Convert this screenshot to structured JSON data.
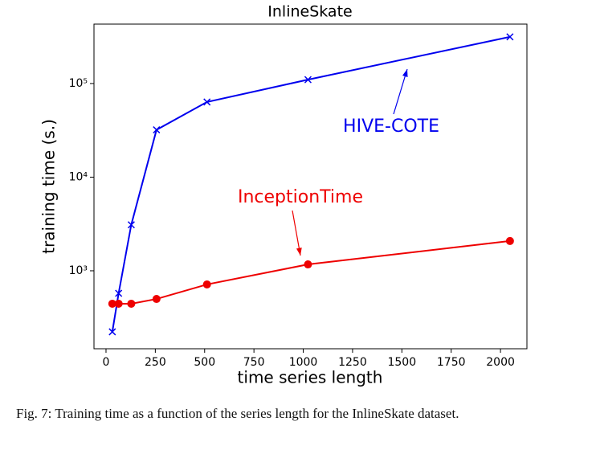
{
  "chart_data": {
    "type": "line",
    "title": "InlineSkate",
    "x_label": "time series length",
    "y_label": "training time (s.)",
    "x": [
      32,
      64,
      128,
      256,
      512,
      1024,
      2048
    ],
    "series": [
      {
        "name": "HIVE-COTE",
        "color": "#0000ee",
        "marker": "x",
        "values": [
          223,
          575,
          3100,
          32000,
          63500,
          110000,
          315000
        ]
      },
      {
        "name": "InceptionTime",
        "color": "#ee0000",
        "marker": "o",
        "values": [
          445,
          445,
          445,
          500,
          715,
          1170,
          2080
        ]
      }
    ],
    "xlim": [
      -61,
      2134
    ],
    "xticks": [
      0,
      250,
      500,
      750,
      1000,
      1250,
      1500,
      1750,
      2000
    ],
    "ylim": [
      147,
      431000
    ],
    "log_y": true,
    "yticks": [
      {
        "value": 1000,
        "label": "10³"
      },
      {
        "value": 10000,
        "label": "10⁴"
      },
      {
        "value": 100000,
        "label": "10⁵"
      }
    ],
    "caption": "Fig. 7: Training time as a function of the series length for the InlineSkate dataset."
  }
}
